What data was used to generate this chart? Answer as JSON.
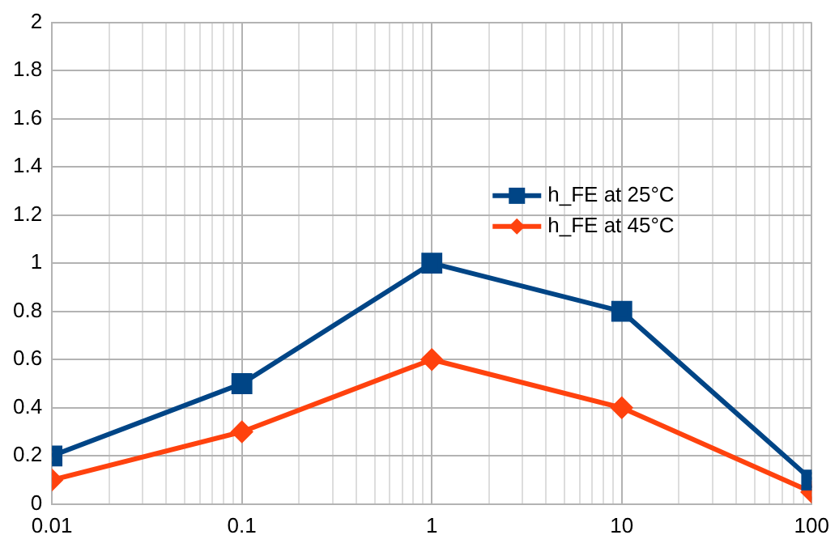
{
  "chart_data": {
    "type": "line",
    "x": [
      0.01,
      0.1,
      1,
      10,
      100
    ],
    "log": "x",
    "xlim": [
      0.01,
      100
    ],
    "xticks": [
      0.01,
      0.1,
      1,
      10,
      100
    ],
    "ylim": [
      0,
      2
    ],
    "yticks": [
      0,
      0.2,
      0.4,
      0.6,
      0.8,
      1,
      1.2,
      1.4,
      1.6,
      1.8,
      2
    ],
    "grid": true,
    "legend": "right",
    "line_style": "solid",
    "series": [
      {
        "name": "h_FE at 25°C",
        "color": "#004586",
        "marker": "square",
        "values": [
          0.2,
          0.5,
          1,
          0.8,
          0.1
        ]
      },
      {
        "name": "h_FE at 45°C",
        "color": "#ff420e",
        "marker": "diamond",
        "values": [
          0.1,
          0.3,
          0.6,
          0.4,
          0.05
        ]
      }
    ]
  }
}
